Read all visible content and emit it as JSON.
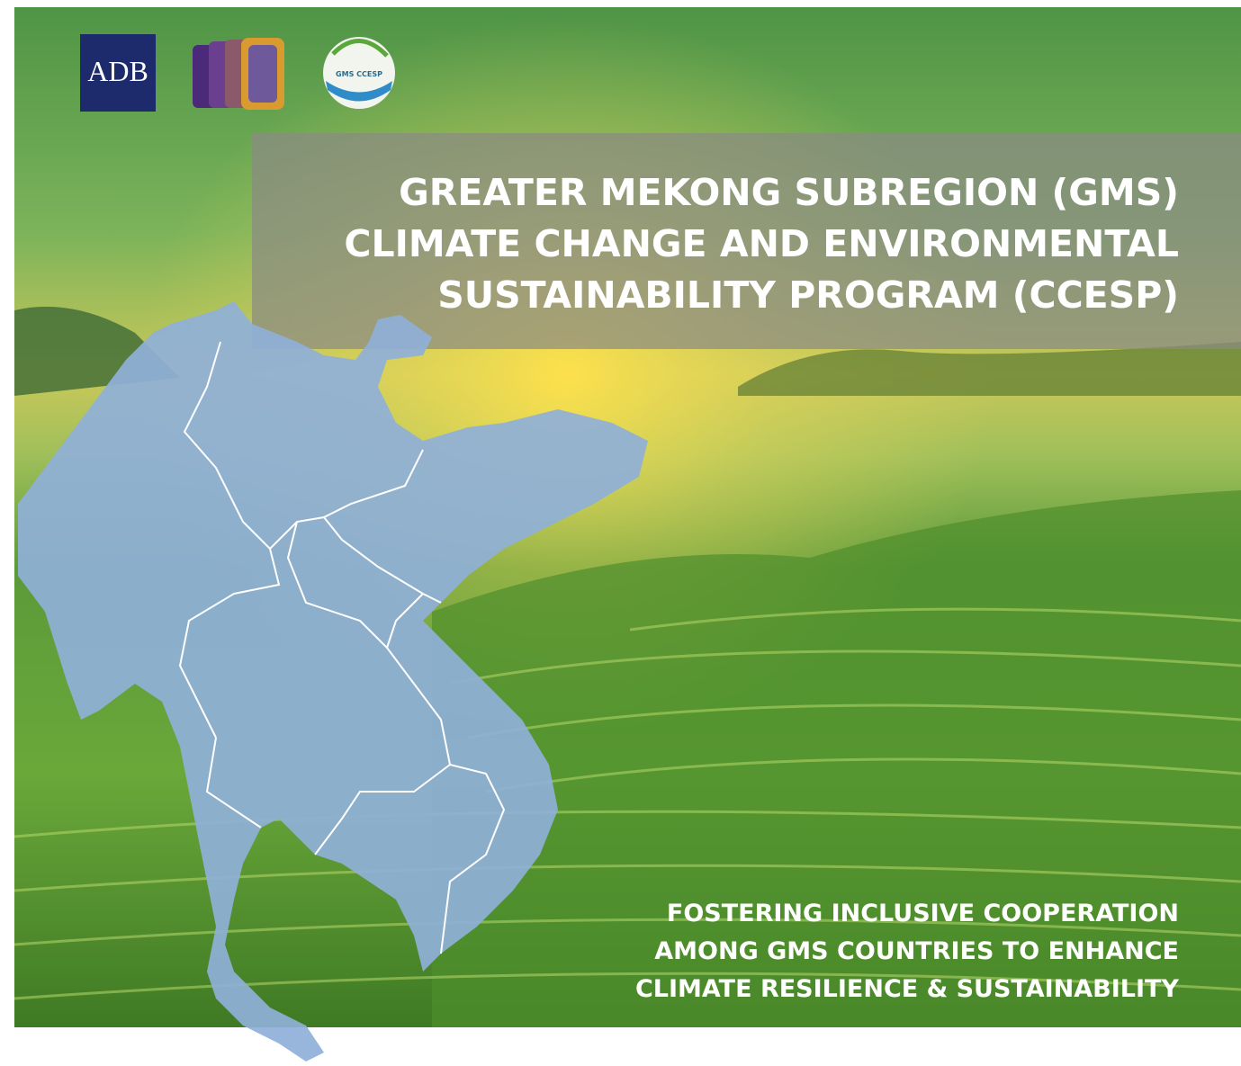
{
  "logos": {
    "adb": "ADB",
    "ccesp": "GMS CCESP"
  },
  "title": {
    "lines": [
      "GREATER MEKONG SUBREGION (GMS)",
      "CLIMATE CHANGE AND ENVIRONMENTAL",
      "SUSTAINABILITY PROGRAM (CCESP)"
    ]
  },
  "tagline": {
    "lines": [
      "FOSTERING INCLUSIVE COOPERATION",
      "AMONG GMS COUNTRIES TO ENHANCE",
      "CLIMATE RESILIENCE & SUSTAINABILITY"
    ]
  }
}
